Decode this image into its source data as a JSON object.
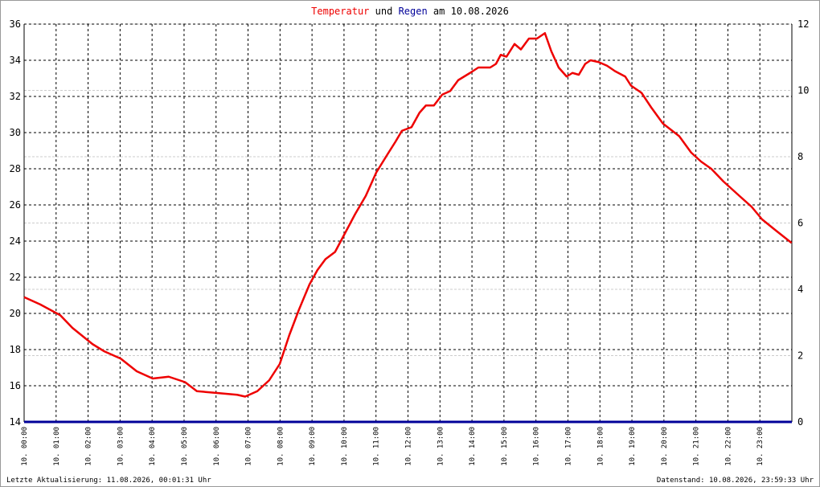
{
  "chart_data": {
    "type": "line",
    "title_join": "und",
    "title_date": "am 10.08.2026",
    "xlim": [
      0,
      24
    ],
    "xticks": [
      {
        "value": 0,
        "label": "10. 00:00"
      },
      {
        "value": 1,
        "label": "10. 01:00"
      },
      {
        "value": 2,
        "label": "10. 02:00"
      },
      {
        "value": 3,
        "label": "10. 03:00"
      },
      {
        "value": 4,
        "label": "10. 04:00"
      },
      {
        "value": 5,
        "label": "10. 05:00"
      },
      {
        "value": 6,
        "label": "10. 06:00"
      },
      {
        "value": 7,
        "label": "10. 07:00"
      },
      {
        "value": 8,
        "label": "10. 08:00"
      },
      {
        "value": 9,
        "label": "10. 09:00"
      },
      {
        "value": 10,
        "label": "10. 10:00"
      },
      {
        "value": 11,
        "label": "10. 11:00"
      },
      {
        "value": 12,
        "label": "10. 12:00"
      },
      {
        "value": 13,
        "label": "10. 13:00"
      },
      {
        "value": 14,
        "label": "10. 14:00"
      },
      {
        "value": 15,
        "label": "10. 15:00"
      },
      {
        "value": 16,
        "label": "10. 16:00"
      },
      {
        "value": 17,
        "label": "10. 17:00"
      },
      {
        "value": 18,
        "label": "10. 18:00"
      },
      {
        "value": 19,
        "label": "10. 19:00"
      },
      {
        "value": 20,
        "label": "10. 20:00"
      },
      {
        "value": 21,
        "label": "10. 21:00"
      },
      {
        "value": 22,
        "label": "10. 22:00"
      },
      {
        "value": 23,
        "label": "10. 23:00"
      }
    ],
    "ylim": [
      14,
      36
    ],
    "yticks": [
      14,
      16,
      18,
      20,
      22,
      24,
      26,
      28,
      30,
      32,
      34,
      36
    ],
    "y2lim": [
      0,
      12
    ],
    "y2ticks": [
      0,
      2,
      4,
      6,
      8,
      10,
      12
    ],
    "y2_color": "#00dd00",
    "grid": true,
    "series": [
      {
        "name": "Temperatur",
        "color": "#ee0000",
        "x": [
          0,
          0.5,
          1.13,
          1.51,
          2.14,
          2.51,
          3.02,
          3.52,
          4.02,
          4.52,
          5.03,
          5.4,
          6.03,
          6.66,
          6.91,
          7.29,
          7.66,
          7.99,
          8.29,
          8.59,
          8.92,
          9.17,
          9.42,
          9.72,
          10.05,
          10.35,
          10.68,
          11.01,
          11.36,
          11.61,
          11.81,
          12.11,
          12.36,
          12.56,
          12.81,
          13.07,
          13.32,
          13.57,
          13.94,
          14.2,
          14.57,
          14.75,
          14.9,
          15.08,
          15.33,
          15.53,
          15.78,
          16.03,
          16.28,
          16.48,
          16.71,
          16.96,
          17.14,
          17.34,
          17.54,
          17.71,
          17.96,
          18.22,
          18.47,
          18.79,
          18.97,
          19.3,
          19.6,
          19.97,
          20.48,
          20.85,
          21.16,
          21.48,
          21.86,
          22.36,
          22.74,
          23.07,
          23.49,
          23.99
        ],
        "values": [
          20.9,
          20.5,
          19.9,
          19.2,
          18.3,
          17.9,
          17.5,
          16.8,
          16.4,
          16.5,
          16.2,
          15.7,
          15.6,
          15.5,
          15.4,
          15.7,
          16.3,
          17.2,
          18.8,
          20.2,
          21.6,
          22.4,
          23.0,
          23.4,
          24.5,
          25.5,
          26.5,
          27.8,
          28.8,
          29.5,
          30.1,
          30.3,
          31.1,
          31.5,
          31.5,
          32.1,
          32.3,
          32.9,
          33.3,
          33.6,
          33.6,
          33.8,
          34.3,
          34.2,
          34.9,
          34.6,
          35.2,
          35.2,
          35.5,
          34.5,
          33.6,
          33.1,
          33.3,
          33.2,
          33.8,
          34.0,
          33.9,
          33.7,
          33.4,
          33.1,
          32.6,
          32.2,
          31.4,
          30.5,
          29.8,
          28.9,
          28.4,
          28.0,
          27.3,
          26.5,
          25.9,
          25.2,
          24.6,
          23.9
        ]
      },
      {
        "name": "Regen",
        "color": "#000099",
        "axis": "y2",
        "x": [
          0,
          24
        ],
        "values": [
          0,
          0
        ]
      }
    ]
  },
  "footer": {
    "left": "Letzte Aktualisierung: 11.08.2026, 00:01:31 Uhr",
    "right": "Datenstand: 10.08.2026, 23:59:33 Uhr"
  }
}
